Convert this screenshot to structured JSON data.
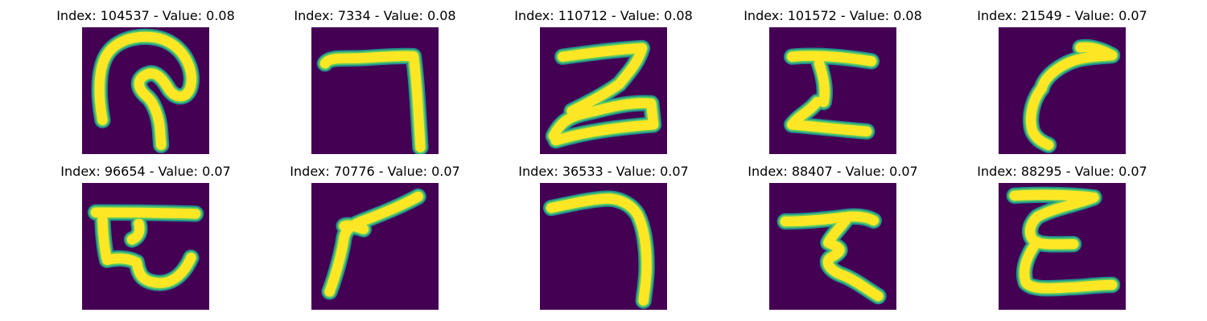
{
  "colors": {
    "background": "#440154",
    "edge": "#21908d",
    "mid": "#5ec962",
    "stroke": "#fde725"
  },
  "panels": [
    {
      "title": "Index: 104537 - Value: 0.08",
      "glyph": "hook-loop"
    },
    {
      "title": "Index: 7334 - Value: 0.08",
      "glyph": "corner-seven"
    },
    {
      "title": "Index: 110712 - Value: 0.08",
      "glyph": "z-shape"
    },
    {
      "title": "Index: 101572 - Value: 0.08",
      "glyph": "i-beam"
    },
    {
      "title": "Index: 21549 - Value: 0.07",
      "glyph": "curved-hook"
    },
    {
      "title": "Index: 96654 - Value: 0.07",
      "glyph": "loop-e"
    },
    {
      "title": "Index: 70776 - Value: 0.07",
      "glyph": "angle-v"
    },
    {
      "title": "Index: 36533 - Value: 0.07",
      "glyph": "arc-seven"
    },
    {
      "title": "Index: 88407 - Value: 0.07",
      "glyph": "zigzag"
    },
    {
      "title": "Index: 88295 - Value: 0.07",
      "glyph": "epsilon"
    }
  ]
}
